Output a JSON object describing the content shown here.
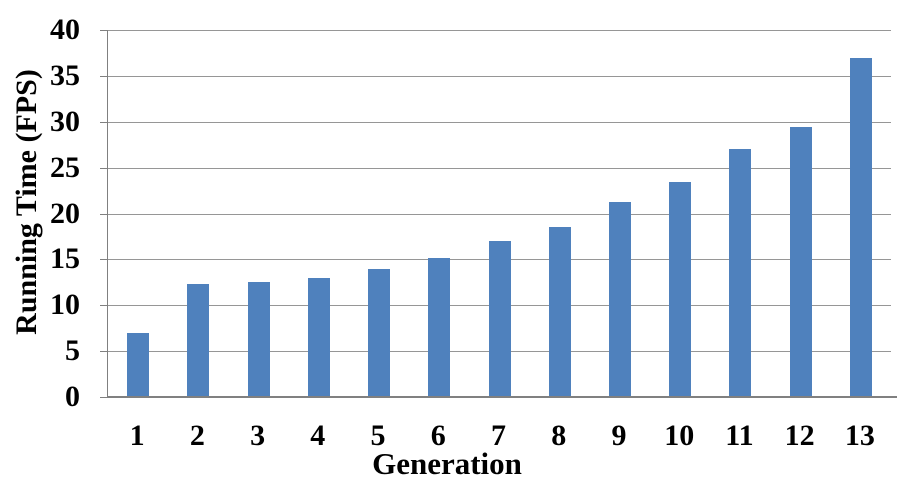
{
  "chart_data": {
    "type": "bar",
    "title": "",
    "categories": [
      "1",
      "2",
      "3",
      "4",
      "5",
      "6",
      "7",
      "8",
      "9",
      "10",
      "11",
      "12",
      "13"
    ],
    "values": [
      7,
      12.3,
      12.5,
      13,
      13.9,
      15.2,
      17,
      18.5,
      21.3,
      23.4,
      27,
      29.4,
      37
    ],
    "xlabel": "Generation",
    "ylabel": "Running Time (FPS)",
    "ylim": [
      0,
      40
    ],
    "yticks": [
      0,
      5,
      10,
      15,
      20,
      25,
      30,
      35,
      40
    ],
    "grid": "horizontal",
    "legend": "none",
    "colors": {
      "bar": "#4F81BD",
      "gridline": "#969696",
      "axis": "#808080",
      "text": "#000000",
      "background": "#FFFFFF"
    }
  }
}
